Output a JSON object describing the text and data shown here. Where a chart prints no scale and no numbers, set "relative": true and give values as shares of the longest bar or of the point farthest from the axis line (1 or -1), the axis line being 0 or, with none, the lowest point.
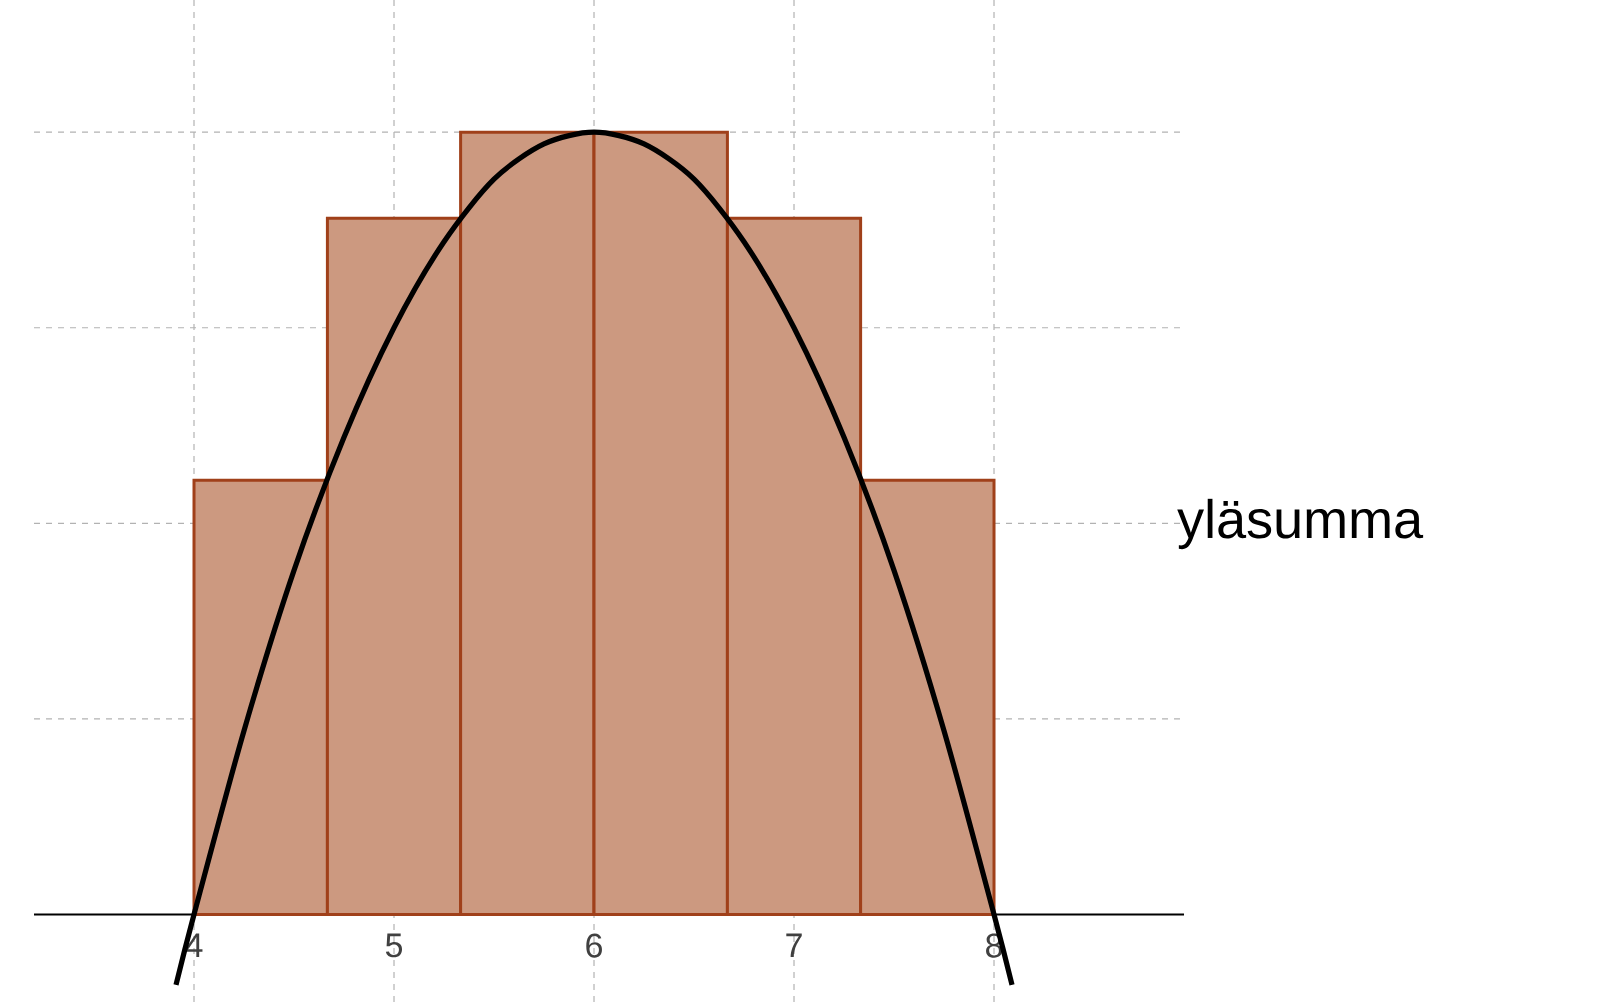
{
  "chart_data": {
    "type": "histogram",
    "relative": true,
    "bins": [
      4,
      4.667,
      5.333,
      6,
      6.667,
      7.333,
      8
    ],
    "values": [
      0.555,
      0.89,
      1,
      1,
      0.89,
      0.555
    ],
    "color": "#cc9980",
    "series": [
      {
        "type": "line",
        "color": "#000000",
        "x": [
          3.91,
          4,
          4.25,
          4.5,
          4.75,
          5,
          5.25,
          5.5,
          5.75,
          6,
          6.25,
          6.5,
          6.75,
          7,
          7.25,
          7.5,
          7.75,
          8,
          8.09
        ],
        "values": [
          -0.09,
          0,
          0.235,
          0.44,
          0.61,
          0.75,
          0.86,
          0.94,
          0.985,
          1,
          0.985,
          0.94,
          0.86,
          0.75,
          0.61,
          0.44,
          0.235,
          0,
          -0.09
        ]
      }
    ],
    "xlim": [
      3.2,
      8.95
    ],
    "xticks": [
      4,
      5,
      6,
      7,
      8
    ],
    "tick_labels": "x",
    "grid": true,
    "annotations": [
      "yläsumma"
    ]
  }
}
